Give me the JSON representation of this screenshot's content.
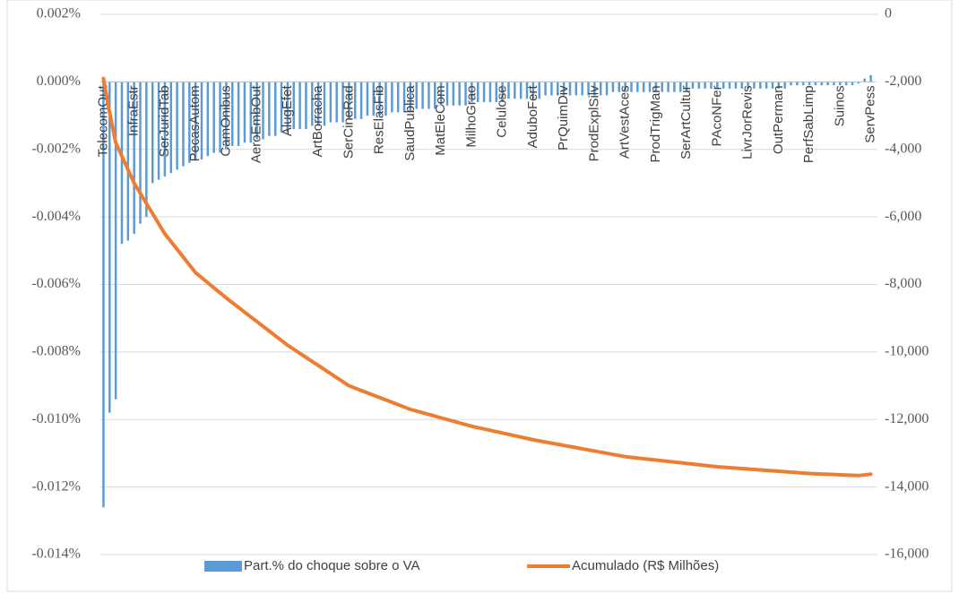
{
  "chart_data": {
    "type": "bar",
    "categories": [
      "TelecomOut",
      null,
      null,
      null,
      null,
      "InfraEstr",
      null,
      null,
      null,
      null,
      "SerJuridTab",
      null,
      null,
      null,
      null,
      "PecasAutom",
      null,
      null,
      null,
      null,
      "CamOnibus",
      null,
      null,
      null,
      null,
      "AeroEmbOut",
      null,
      null,
      null,
      null,
      "AlugEfet",
      null,
      null,
      null,
      null,
      "ArtBorracha",
      null,
      null,
      null,
      null,
      "SerCineRad",
      null,
      null,
      null,
      null,
      "ResElasFib",
      null,
      null,
      null,
      null,
      "SaudPublica",
      null,
      null,
      null,
      null,
      "MatEleCom",
      null,
      null,
      null,
      null,
      "MilhoGrao",
      null,
      null,
      null,
      null,
      "Celulose",
      null,
      null,
      null,
      null,
      "AduboFert",
      null,
      null,
      null,
      null,
      "PrQuimDiv",
      null,
      null,
      null,
      null,
      "ProdExplSilv",
      null,
      null,
      null,
      null,
      "ArtVestAces",
      null,
      null,
      null,
      null,
      "ProdTrigMan",
      null,
      null,
      null,
      null,
      "SerArtCultur",
      null,
      null,
      null,
      null,
      "PAcoNFer",
      null,
      null,
      null,
      null,
      "LivrJorRevis",
      null,
      null,
      null,
      null,
      "OutPerman",
      null,
      null,
      null,
      null,
      "PerfSabLimp",
      null,
      null,
      null,
      null,
      "Suinos",
      null,
      null,
      null,
      null,
      "ServPess"
    ],
    "series": [
      {
        "name": "Part.% do choque sobre o VA",
        "color": "#5b9bd5",
        "values": [
          -0.0126,
          -0.0098,
          -0.0094,
          -0.0048,
          -0.0047,
          -0.0045,
          -0.0042,
          -0.004,
          -0.003,
          -0.0029,
          -0.0028,
          -0.0027,
          -0.0026,
          -0.0025,
          -0.0024,
          -0.0023,
          -0.0023,
          -0.0022,
          -0.0021,
          -0.0021,
          -0.002,
          -0.0019,
          -0.0019,
          -0.0018,
          -0.0018,
          -0.0017,
          -0.0017,
          -0.0016,
          -0.0016,
          -0.0015,
          -0.0015,
          -0.0014,
          -0.0014,
          -0.0014,
          -0.0013,
          -0.0013,
          -0.0013,
          -0.0012,
          -0.0012,
          -0.0012,
          -0.0011,
          -0.0011,
          -0.0011,
          -0.001,
          -0.001,
          -0.001,
          -0.001,
          -0.0009,
          -0.0009,
          -0.0009,
          -0.0009,
          -0.0008,
          -0.0008,
          -0.0008,
          -0.0008,
          -0.0007,
          -0.0007,
          -0.0007,
          -0.0007,
          -0.0007,
          -0.0006,
          -0.0006,
          -0.0006,
          -0.0006,
          -0.0006,
          -0.0006,
          -0.0005,
          -0.0005,
          -0.0005,
          -0.0005,
          -0.0005,
          -0.0005,
          -0.0004,
          -0.0004,
          -0.0004,
          -0.0004,
          -0.0004,
          -0.0004,
          -0.0004,
          -0.0004,
          -0.0004,
          -0.0004,
          -0.0004,
          -0.0003,
          -0.0003,
          -0.0003,
          -0.0003,
          -0.0003,
          -0.0003,
          -0.0003,
          -0.0003,
          -0.0003,
          -0.0003,
          -0.0003,
          -0.0003,
          -0.0003,
          -0.0002,
          -0.0002,
          -0.0002,
          -0.0002,
          -0.0002,
          -0.0002,
          -0.0002,
          -0.0002,
          -0.0002,
          -0.0002,
          -0.0002,
          -0.0002,
          -0.0002,
          -0.0002,
          -0.0002,
          -0.0002,
          -0.0001,
          -0.0001,
          -0.0001,
          -0.0001,
          -0.0001,
          -0.0001,
          -0.0001,
          -0.0001,
          -0.0001,
          -0.0001,
          -0.0001,
          -5e-05,
          0.0001,
          0.0002
        ]
      },
      {
        "name": "Acumulado (R$ Milhões)",
        "color": "#ed7d31",
        "type": "line",
        "axis": "y2",
        "values": [
          -1900,
          -2900,
          -3800,
          -4200,
          -4600,
          -5000,
          -5300,
          -5600,
          -5900,
          -6200,
          -6500,
          -6730,
          -6960,
          -7190,
          -7420,
          -7650,
          -7800,
          -7950,
          -8100,
          -8250,
          -8400,
          -8540,
          -8680,
          -8820,
          -8960,
          -9100,
          -9240,
          -9380,
          -9520,
          -9660,
          -9800,
          -9920,
          -10040,
          -10160,
          -10280,
          -10400,
          -10520,
          -10640,
          -10760,
          -10880,
          -11000,
          -11070,
          -11140,
          -11210,
          -11280,
          -11350,
          -11420,
          -11490,
          -11560,
          -11630,
          -11700,
          -11750,
          -11800,
          -11850,
          -11900,
          -11950,
          -12000,
          -12050,
          -12100,
          -12150,
          -12200,
          -12240,
          -12280,
          -12320,
          -12360,
          -12400,
          -12440,
          -12480,
          -12520,
          -12560,
          -12600,
          -12633,
          -12667,
          -12700,
          -12733,
          -12767,
          -12800,
          -12833,
          -12867,
          -12900,
          -12933,
          -12967,
          -13000,
          -13033,
          -13067,
          -13100,
          -13120,
          -13140,
          -13160,
          -13180,
          -13200,
          -13220,
          -13240,
          -13260,
          -13280,
          -13300,
          -13320,
          -13340,
          -13360,
          -13380,
          -13400,
          -13413,
          -13427,
          -13440,
          -13453,
          -13467,
          -13480,
          -13493,
          -13507,
          -13520,
          -13533,
          -13547,
          -13560,
          -13573,
          -13587,
          -13600,
          -13608,
          -13615,
          -13623,
          -13630,
          -13638,
          -13645,
          -13653,
          -13660,
          -13640,
          -13620
        ]
      }
    ],
    "ylim": [
      -0.014,
      0.002
    ],
    "yticks": [
      {
        "value": -0.014,
        "label": "-0.014%"
      },
      {
        "value": -0.012,
        "label": "-0.012%"
      },
      {
        "value": -0.01,
        "label": "-0.010%"
      },
      {
        "value": -0.008,
        "label": "-0.008%"
      },
      {
        "value": -0.006,
        "label": "-0.006%"
      },
      {
        "value": -0.004,
        "label": "-0.004%"
      },
      {
        "value": -0.002,
        "label": "-0.002%"
      },
      {
        "value": 0,
        "label": "0.000%"
      },
      {
        "value": 0.002,
        "label": "0.002%"
      }
    ],
    "y2lim": [
      -16000,
      0
    ],
    "y2ticks": [
      {
        "value": -16000,
        "label": "-16,000"
      },
      {
        "value": -14000,
        "label": "-14,000"
      },
      {
        "value": -12000,
        "label": "-12,000"
      },
      {
        "value": -10000,
        "label": "-10,000"
      },
      {
        "value": -8000,
        "label": "-8,000"
      },
      {
        "value": -6000,
        "label": "-6,000"
      },
      {
        "value": -4000,
        "label": "-4,000"
      },
      {
        "value": -2000,
        "label": "-2,000"
      },
      0
    ],
    "grid": true,
    "legend": "bottom"
  }
}
